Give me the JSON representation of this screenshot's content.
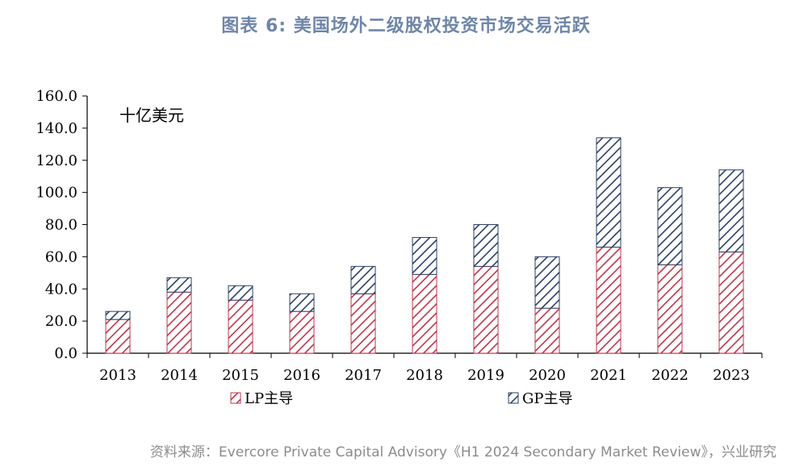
{
  "header": {
    "title": "图表  6: 美国场外二级股权投资市场交易活跃"
  },
  "footer": {
    "source": "资料来源：Evercore Private Capital Advisory《H1 2024 Secondary Market Review》，兴业研究"
  },
  "colors": {
    "lp": "#c0344b",
    "gp": "#2b3f66",
    "axis": "#000000",
    "title": "#6f86a8"
  },
  "chart_data": {
    "type": "bar",
    "stacked": true,
    "unit_label": "十亿美元",
    "categories": [
      "2013",
      "2014",
      "2015",
      "2016",
      "2017",
      "2018",
      "2019",
      "2020",
      "2021",
      "2022",
      "2023"
    ],
    "series": [
      {
        "name": "LP主导",
        "values": [
          21,
          38,
          33,
          26,
          37,
          49,
          54,
          28,
          66,
          55,
          63
        ]
      },
      {
        "name": "GP主导",
        "values": [
          5,
          9,
          9,
          11,
          17,
          23,
          26,
          32,
          68,
          48,
          51
        ]
      }
    ],
    "ylim": [
      0,
      160
    ],
    "yticks": [
      "0.0",
      "20.0",
      "40.0",
      "60.0",
      "80.0",
      "100.0",
      "120.0",
      "140.0",
      "160.0"
    ],
    "grid": false,
    "legend_position": "bottom"
  }
}
